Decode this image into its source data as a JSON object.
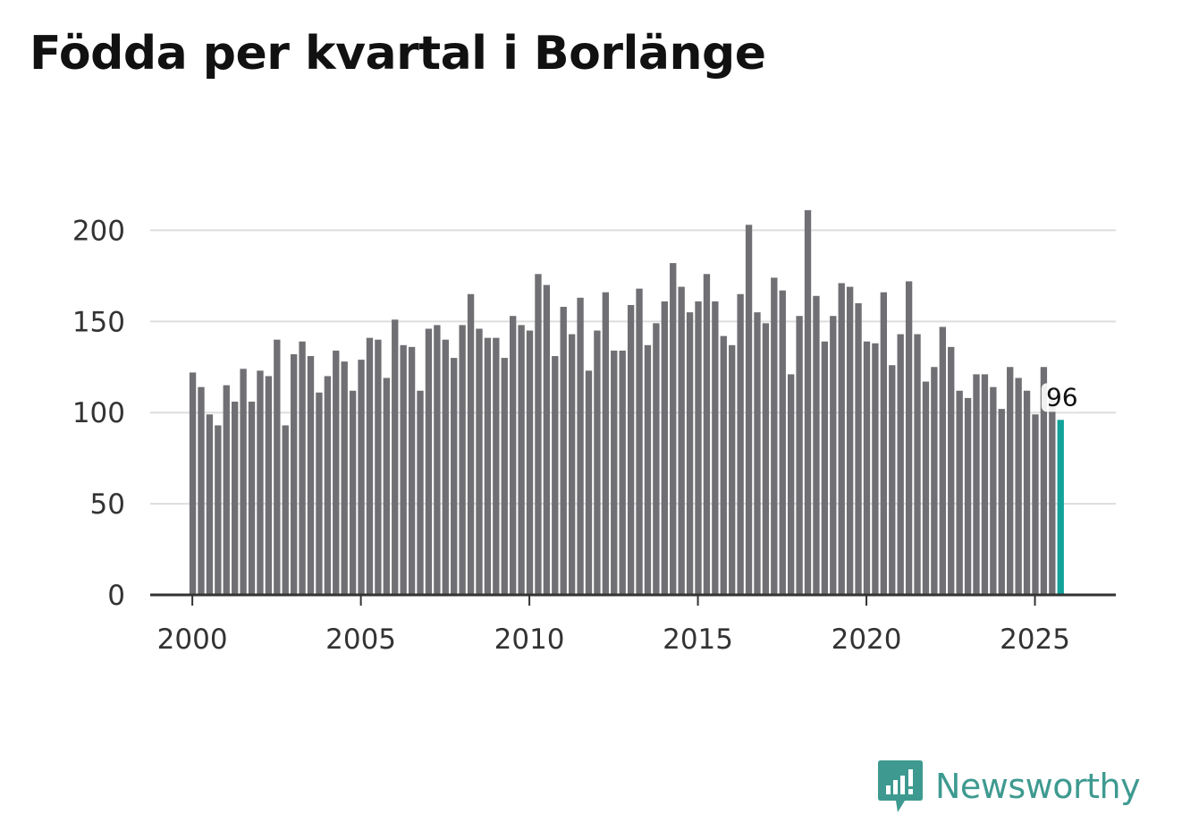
{
  "chart_data": {
    "type": "bar",
    "title": "Födda per kvartal i Borlänge",
    "xlabel": "",
    "ylabel": "",
    "x_start": "2000 Q1",
    "xlim": [
      1998.75,
      2027.4
    ],
    "ylim": [
      0,
      211
    ],
    "yticks": [
      0,
      50,
      100,
      150,
      200
    ],
    "xticks": [
      2000,
      2005,
      2010,
      2015,
      2020,
      2025
    ],
    "grid": true,
    "values": [
      122,
      114,
      99,
      93,
      115,
      106,
      124,
      106,
      123,
      120,
      140,
      93,
      132,
      139,
      131,
      111,
      120,
      134,
      128,
      112,
      129,
      141,
      140,
      119,
      151,
      137,
      136,
      112,
      146,
      148,
      140,
      130,
      148,
      165,
      146,
      141,
      141,
      130,
      153,
      148,
      145,
      176,
      170,
      131,
      158,
      143,
      163,
      123,
      145,
      166,
      134,
      134,
      159,
      168,
      137,
      149,
      161,
      182,
      169,
      155,
      161,
      176,
      161,
      142,
      137,
      165,
      203,
      155,
      149,
      174,
      167,
      121,
      153,
      211,
      164,
      139,
      153,
      171,
      169,
      160,
      139,
      138,
      166,
      126,
      143,
      172,
      143,
      117,
      125,
      147,
      136,
      112,
      108,
      121,
      121,
      114,
      102,
      125,
      119,
      112,
      99,
      125,
      110,
      96
    ],
    "highlight": {
      "index": 103,
      "label": "96",
      "color": "#12a29a"
    },
    "bar_color": "#707074"
  },
  "brand": {
    "name": "Newsworthy",
    "icon": "bar-chart-badge-icon",
    "color": "#3e9a90"
  }
}
